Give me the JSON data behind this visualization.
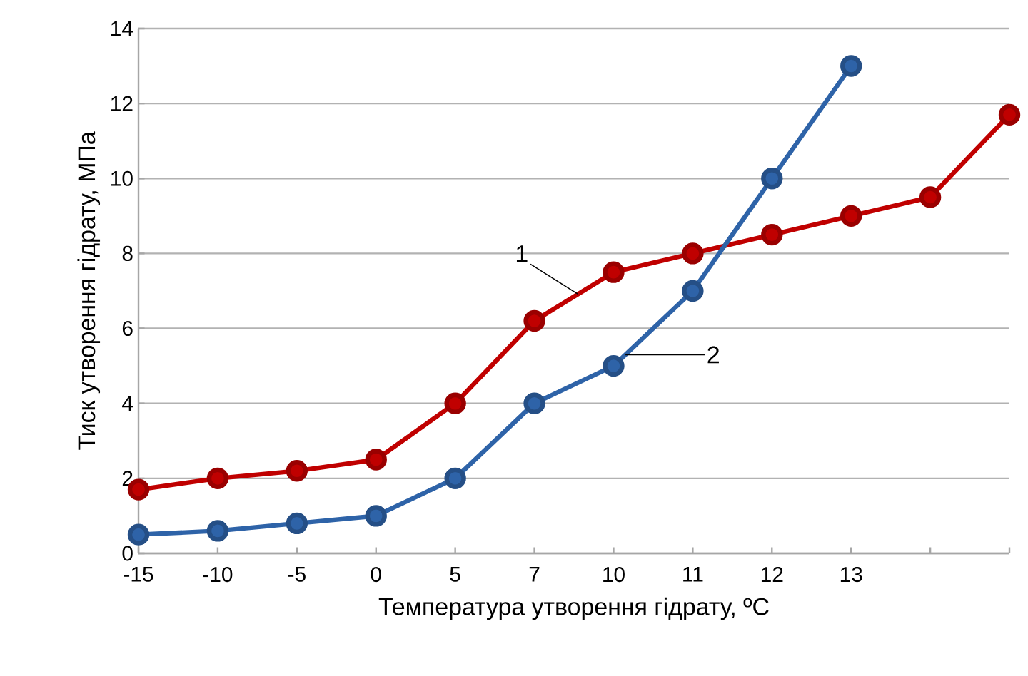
{
  "chart_data": {
    "type": "line",
    "xlabel": "Температура утворення гідрату, ºС",
    "ylabel": "Тиск утворення гідрату, МПа",
    "categories": [
      "-15",
      "-10",
      "-5",
      "0",
      "5",
      "7",
      "10",
      "11",
      "12",
      "13",
      null,
      null
    ],
    "series": [
      {
        "name": "1",
        "color": "#c00000",
        "values": [
          1.7,
          2.0,
          2.2,
          2.5,
          4.0,
          6.2,
          7.5,
          8.0,
          8.5,
          9.0,
          9.5,
          11.7
        ]
      },
      {
        "name": "2",
        "color": "#2e63a8",
        "values": [
          0.5,
          0.6,
          0.8,
          1.0,
          2.0,
          4.0,
          5.0,
          7.0,
          10.0,
          13.0,
          null,
          null
        ]
      }
    ],
    "ylim": [
      0,
      14
    ],
    "yticks": [
      0,
      2,
      4,
      6,
      8,
      10,
      12,
      14
    ],
    "grid": "y",
    "marker": "circle",
    "line_style": "solid"
  }
}
